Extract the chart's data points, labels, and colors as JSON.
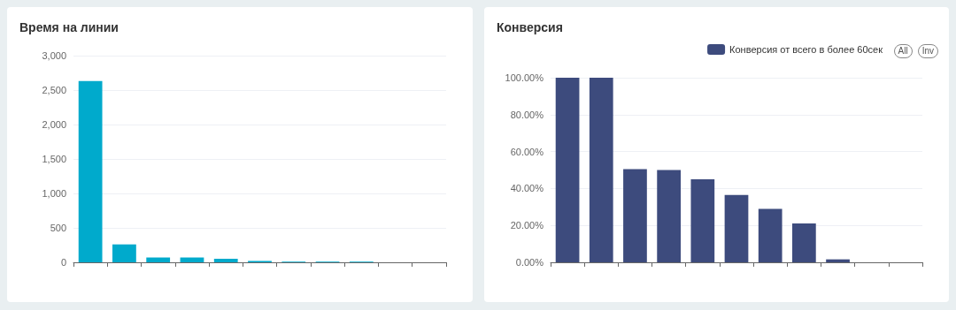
{
  "chart_data": [
    {
      "type": "bar",
      "title": "Время на линии",
      "categories": [
        null,
        null,
        null,
        null,
        null,
        null,
        null,
        null,
        null,
        null,
        null
      ],
      "values": [
        2630,
        260,
        70,
        70,
        50,
        20,
        10,
        10,
        10,
        0,
        0
      ],
      "color": "#00aacc",
      "ylim": [
        0,
        3000
      ],
      "yticks": [
        0,
        {
          "value": 500,
          "label": "500"
        },
        {
          "value": 1000,
          "label": "1,000"
        },
        {
          "value": 1500,
          "label": "1,500"
        },
        {
          "value": 2000,
          "label": "2,000"
        },
        {
          "value": 2500,
          "label": "2,500"
        },
        {
          "value": 3000,
          "label": "3,000"
        }
      ],
      "grid": "y",
      "legend": false
    },
    {
      "type": "bar",
      "title": "Конверсия",
      "categories": [
        null,
        null,
        null,
        null,
        null,
        null,
        null,
        null,
        null,
        null,
        null
      ],
      "series": [
        {
          "name": "Конверсия от всего в более 60сек",
          "color": "#3d4b7d",
          "values": [
            100,
            100,
            50.5,
            50,
            45,
            36.5,
            29,
            21,
            1.6,
            0,
            0
          ]
        }
      ],
      "ylim": [
        0,
        100
      ],
      "yticks": [
        {
          "value": 0,
          "label": "0.00%"
        },
        {
          "value": 20,
          "label": "20.00%"
        },
        {
          "value": 40,
          "label": "40.00%"
        },
        {
          "value": 60,
          "label": "60.00%"
        },
        {
          "value": 80,
          "label": "80.00%"
        },
        {
          "value": 100,
          "label": "100.00%"
        }
      ],
      "grid": "y",
      "legend": "top right",
      "annotations": [
        "All",
        "Inv"
      ]
    }
  ]
}
